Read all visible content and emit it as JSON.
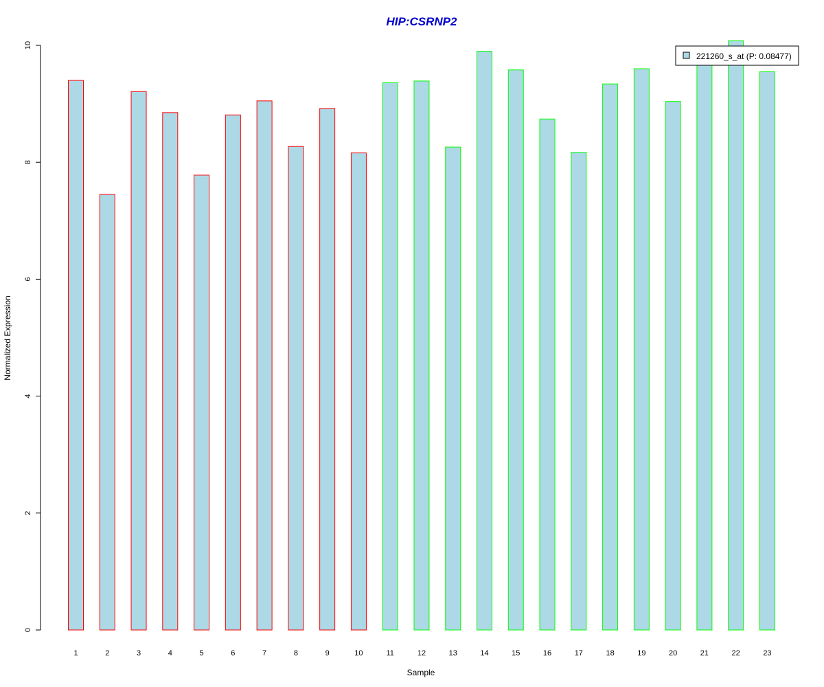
{
  "chart_data": {
    "type": "bar",
    "title": "HIP:CSRNP2",
    "title_color": "#0000CC",
    "xlabel": "Sample",
    "ylabel": "Normalized Expression",
    "ylim": [
      0,
      10
    ],
    "yticks": [
      "0",
      "2",
      "4",
      "6",
      "8",
      "10"
    ],
    "grid": false,
    "categories": [
      "1",
      "2",
      "3",
      "4",
      "5",
      "6",
      "7",
      "8",
      "9",
      "10",
      "11",
      "12",
      "13",
      "14",
      "15",
      "16",
      "17",
      "18",
      "19",
      "20",
      "21",
      "22",
      "23"
    ],
    "values": [
      9.4,
      7.45,
      9.21,
      8.85,
      7.78,
      8.81,
      9.05,
      8.27,
      8.92,
      8.16,
      9.36,
      9.39,
      8.26,
      9.9,
      9.58,
      8.74,
      8.17,
      9.34,
      9.6,
      9.04,
      9.72,
      10.08,
      9.55
    ],
    "bar_fill": "#ADD8E6",
    "bar_outline": [
      "#FF0000",
      "#FF0000",
      "#FF0000",
      "#FF0000",
      "#FF0000",
      "#FF0000",
      "#FF0000",
      "#FF0000",
      "#FF0000",
      "#FF0000",
      "#00FF00",
      "#00FF00",
      "#00FF00",
      "#00FF00",
      "#00FF00",
      "#00FF00",
      "#00FF00",
      "#00FF00",
      "#00FF00",
      "#00FF00",
      "#00FF00",
      "#00FF00",
      "#00FF00"
    ],
    "legend": {
      "position": "top-right",
      "entries": [
        {
          "label": "221260_s_at (P: 0.08477)",
          "color": "#ADD8E6"
        }
      ]
    }
  }
}
